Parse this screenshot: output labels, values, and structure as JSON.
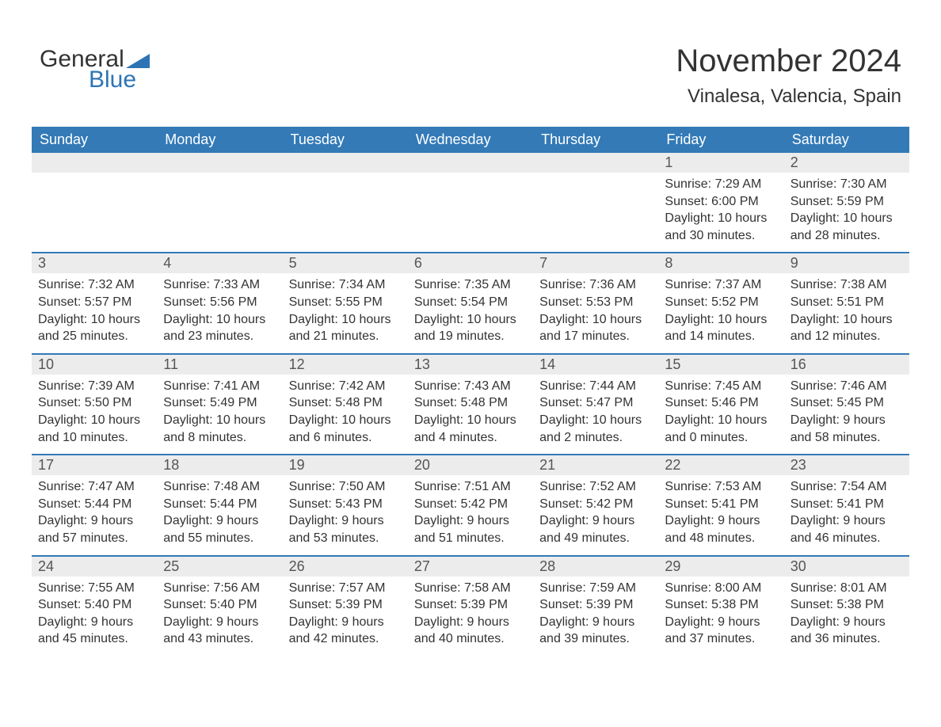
{
  "logo": {
    "text_general": "General",
    "text_blue": "Blue",
    "flag_color": "#2e74b5"
  },
  "header": {
    "title": "November 2024",
    "location": "Vinalesa, Valencia, Spain"
  },
  "style": {
    "header_bg": "#337ab7",
    "header_text": "#ffffff",
    "row_border": "#337ab7",
    "daynum_bg": "#ececec",
    "daynum_text": "#555555",
    "body_text": "#333333",
    "page_bg": "#ffffff",
    "title_fontsize": 40,
    "location_fontsize": 24,
    "dayheader_fontsize": 18,
    "cell_fontsize": 16
  },
  "days_of_week": [
    "Sunday",
    "Monday",
    "Tuesday",
    "Wednesday",
    "Thursday",
    "Friday",
    "Saturday"
  ],
  "weeks": [
    [
      {
        "day": "",
        "sunrise": "",
        "sunset": "",
        "daylight1": "",
        "daylight2": ""
      },
      {
        "day": "",
        "sunrise": "",
        "sunset": "",
        "daylight1": "",
        "daylight2": ""
      },
      {
        "day": "",
        "sunrise": "",
        "sunset": "",
        "daylight1": "",
        "daylight2": ""
      },
      {
        "day": "",
        "sunrise": "",
        "sunset": "",
        "daylight1": "",
        "daylight2": ""
      },
      {
        "day": "",
        "sunrise": "",
        "sunset": "",
        "daylight1": "",
        "daylight2": ""
      },
      {
        "day": "1",
        "sunrise": "Sunrise: 7:29 AM",
        "sunset": "Sunset: 6:00 PM",
        "daylight1": "Daylight: 10 hours",
        "daylight2": "and 30 minutes."
      },
      {
        "day": "2",
        "sunrise": "Sunrise: 7:30 AM",
        "sunset": "Sunset: 5:59 PM",
        "daylight1": "Daylight: 10 hours",
        "daylight2": "and 28 minutes."
      }
    ],
    [
      {
        "day": "3",
        "sunrise": "Sunrise: 7:32 AM",
        "sunset": "Sunset: 5:57 PM",
        "daylight1": "Daylight: 10 hours",
        "daylight2": "and 25 minutes."
      },
      {
        "day": "4",
        "sunrise": "Sunrise: 7:33 AM",
        "sunset": "Sunset: 5:56 PM",
        "daylight1": "Daylight: 10 hours",
        "daylight2": "and 23 minutes."
      },
      {
        "day": "5",
        "sunrise": "Sunrise: 7:34 AM",
        "sunset": "Sunset: 5:55 PM",
        "daylight1": "Daylight: 10 hours",
        "daylight2": "and 21 minutes."
      },
      {
        "day": "6",
        "sunrise": "Sunrise: 7:35 AM",
        "sunset": "Sunset: 5:54 PM",
        "daylight1": "Daylight: 10 hours",
        "daylight2": "and 19 minutes."
      },
      {
        "day": "7",
        "sunrise": "Sunrise: 7:36 AM",
        "sunset": "Sunset: 5:53 PM",
        "daylight1": "Daylight: 10 hours",
        "daylight2": "and 17 minutes."
      },
      {
        "day": "8",
        "sunrise": "Sunrise: 7:37 AM",
        "sunset": "Sunset: 5:52 PM",
        "daylight1": "Daylight: 10 hours",
        "daylight2": "and 14 minutes."
      },
      {
        "day": "9",
        "sunrise": "Sunrise: 7:38 AM",
        "sunset": "Sunset: 5:51 PM",
        "daylight1": "Daylight: 10 hours",
        "daylight2": "and 12 minutes."
      }
    ],
    [
      {
        "day": "10",
        "sunrise": "Sunrise: 7:39 AM",
        "sunset": "Sunset: 5:50 PM",
        "daylight1": "Daylight: 10 hours",
        "daylight2": "and 10 minutes."
      },
      {
        "day": "11",
        "sunrise": "Sunrise: 7:41 AM",
        "sunset": "Sunset: 5:49 PM",
        "daylight1": "Daylight: 10 hours",
        "daylight2": "and 8 minutes."
      },
      {
        "day": "12",
        "sunrise": "Sunrise: 7:42 AM",
        "sunset": "Sunset: 5:48 PM",
        "daylight1": "Daylight: 10 hours",
        "daylight2": "and 6 minutes."
      },
      {
        "day": "13",
        "sunrise": "Sunrise: 7:43 AM",
        "sunset": "Sunset: 5:48 PM",
        "daylight1": "Daylight: 10 hours",
        "daylight2": "and 4 minutes."
      },
      {
        "day": "14",
        "sunrise": "Sunrise: 7:44 AM",
        "sunset": "Sunset: 5:47 PM",
        "daylight1": "Daylight: 10 hours",
        "daylight2": "and 2 minutes."
      },
      {
        "day": "15",
        "sunrise": "Sunrise: 7:45 AM",
        "sunset": "Sunset: 5:46 PM",
        "daylight1": "Daylight: 10 hours",
        "daylight2": "and 0 minutes."
      },
      {
        "day": "16",
        "sunrise": "Sunrise: 7:46 AM",
        "sunset": "Sunset: 5:45 PM",
        "daylight1": "Daylight: 9 hours",
        "daylight2": "and 58 minutes."
      }
    ],
    [
      {
        "day": "17",
        "sunrise": "Sunrise: 7:47 AM",
        "sunset": "Sunset: 5:44 PM",
        "daylight1": "Daylight: 9 hours",
        "daylight2": "and 57 minutes."
      },
      {
        "day": "18",
        "sunrise": "Sunrise: 7:48 AM",
        "sunset": "Sunset: 5:44 PM",
        "daylight1": "Daylight: 9 hours",
        "daylight2": "and 55 minutes."
      },
      {
        "day": "19",
        "sunrise": "Sunrise: 7:50 AM",
        "sunset": "Sunset: 5:43 PM",
        "daylight1": "Daylight: 9 hours",
        "daylight2": "and 53 minutes."
      },
      {
        "day": "20",
        "sunrise": "Sunrise: 7:51 AM",
        "sunset": "Sunset: 5:42 PM",
        "daylight1": "Daylight: 9 hours",
        "daylight2": "and 51 minutes."
      },
      {
        "day": "21",
        "sunrise": "Sunrise: 7:52 AM",
        "sunset": "Sunset: 5:42 PM",
        "daylight1": "Daylight: 9 hours",
        "daylight2": "and 49 minutes."
      },
      {
        "day": "22",
        "sunrise": "Sunrise: 7:53 AM",
        "sunset": "Sunset: 5:41 PM",
        "daylight1": "Daylight: 9 hours",
        "daylight2": "and 48 minutes."
      },
      {
        "day": "23",
        "sunrise": "Sunrise: 7:54 AM",
        "sunset": "Sunset: 5:41 PM",
        "daylight1": "Daylight: 9 hours",
        "daylight2": "and 46 minutes."
      }
    ],
    [
      {
        "day": "24",
        "sunrise": "Sunrise: 7:55 AM",
        "sunset": "Sunset: 5:40 PM",
        "daylight1": "Daylight: 9 hours",
        "daylight2": "and 45 minutes."
      },
      {
        "day": "25",
        "sunrise": "Sunrise: 7:56 AM",
        "sunset": "Sunset: 5:40 PM",
        "daylight1": "Daylight: 9 hours",
        "daylight2": "and 43 minutes."
      },
      {
        "day": "26",
        "sunrise": "Sunrise: 7:57 AM",
        "sunset": "Sunset: 5:39 PM",
        "daylight1": "Daylight: 9 hours",
        "daylight2": "and 42 minutes."
      },
      {
        "day": "27",
        "sunrise": "Sunrise: 7:58 AM",
        "sunset": "Sunset: 5:39 PM",
        "daylight1": "Daylight: 9 hours",
        "daylight2": "and 40 minutes."
      },
      {
        "day": "28",
        "sunrise": "Sunrise: 7:59 AM",
        "sunset": "Sunset: 5:39 PM",
        "daylight1": "Daylight: 9 hours",
        "daylight2": "and 39 minutes."
      },
      {
        "day": "29",
        "sunrise": "Sunrise: 8:00 AM",
        "sunset": "Sunset: 5:38 PM",
        "daylight1": "Daylight: 9 hours",
        "daylight2": "and 37 minutes."
      },
      {
        "day": "30",
        "sunrise": "Sunrise: 8:01 AM",
        "sunset": "Sunset: 5:38 PM",
        "daylight1": "Daylight: 9 hours",
        "daylight2": "and 36 minutes."
      }
    ]
  ]
}
